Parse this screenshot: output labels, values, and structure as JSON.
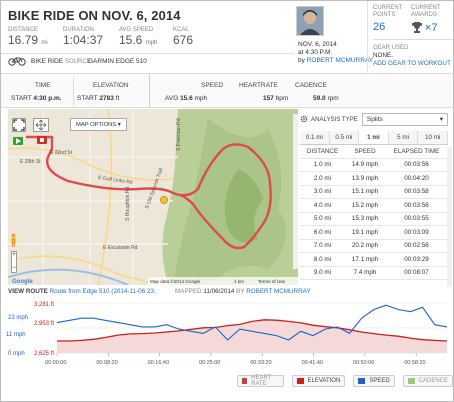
{
  "title": "BIKE RIDE ON NOV. 6, 2014",
  "stats": [
    {
      "label": "DISTANCE",
      "value": "16.79",
      "unit": "mi"
    },
    {
      "label": "DURATION",
      "value": "1:04:37",
      "unit": ""
    },
    {
      "label": "AVG SPEED",
      "value": "15.6",
      "unit": "mph"
    },
    {
      "label": "KCAL",
      "value": "676",
      "unit": ""
    }
  ],
  "activity_type": "BIKE RIDE",
  "source_label": "SOURCE",
  "source_value": "GARMIN EDGE 510",
  "profile": {
    "date": "NOV. 6, 2014",
    "time": "at 4:30 P.M.",
    "by": "by",
    "author": "ROBERT MCMURRAY"
  },
  "points": {
    "label": "CURRENT POINTS",
    "value": "26"
  },
  "awards": {
    "label": "CURRENT AWARDS",
    "value": "7",
    "prefix": "×"
  },
  "gear": {
    "label": "GEAR USED",
    "value": "NONE.",
    "link": "ADD GEAR TO WORKOUT"
  },
  "row2": {
    "time_label": "TIME",
    "start_label": "START",
    "start_time": "4:30 p.m.",
    "elev_label": "ELEVATION",
    "elev_start_label": "START",
    "elev_start": "2783",
    "elev_unit": "ft",
    "speed_label": "SPEED",
    "avg_label": "AVG",
    "avg_speed": "15.6",
    "speed_unit": "mph",
    "hr_label": "HEARTRATE",
    "hr_value": "157",
    "hr_unit": "bpm",
    "cad_label": "CADENCE",
    "cad_value": "59.0",
    "cad_unit": "rpm"
  },
  "map": {
    "options_label": "MAP OPTIONS",
    "roads": [
      "E 22nd St",
      "E 29th St",
      "E Golf Links Rd",
      "E Escalante Rd",
      "S Houghton Rd",
      "S Freeman Rd",
      "S Old Spanish Trail"
    ],
    "attribution": "Map data ©2014 Google",
    "scale": "1 km",
    "terms": "Terms of Use"
  },
  "analysis": {
    "label": "ANALYSIS TYPE",
    "select": "Splits",
    "tabs": [
      "0.1 mi",
      "0.5 mi",
      "1 mi",
      "5 mi",
      "10 mi"
    ],
    "active_tab": 2,
    "columns": [
      "DISTANCE",
      "SPEED",
      "ELAPSED TIME"
    ],
    "rows": [
      [
        "1.0 mi",
        "14.9 mph",
        "00:03:56"
      ],
      [
        "2.0 mi",
        "13.9 mph",
        "00:04:20"
      ],
      [
        "3.0 mi",
        "15.1 mph",
        "00:03:58"
      ],
      [
        "4.0 mi",
        "15.2 mph",
        "00:03:56"
      ],
      [
        "5.0 mi",
        "15.3 mph",
        "00:03:55"
      ],
      [
        "6.0 mi",
        "19.1 mph",
        "00:03:09"
      ],
      [
        "7.0 mi",
        "20.2 mph",
        "00:02:56"
      ],
      [
        "8.0 mi",
        "17.1 mph",
        "00:03:29"
      ],
      [
        "9.0 mi",
        "7.4 mph",
        "00:08:07"
      ]
    ]
  },
  "route": {
    "label": "VIEW ROUTE",
    "name": "Route from Edge 510 (2014-11-06 23:",
    "mapped_label": "MAPPED",
    "mapped_date": "11/06/2014",
    "by": "BY",
    "author": "ROBERT MCMURRAY"
  },
  "chart_data": {
    "type": "line",
    "ylabels_left": [
      {
        "speed": "0 mph",
        "elev": "2,625 ft"
      },
      {
        "speed": "11 mph",
        "elev": "2,953 ft"
      },
      {
        "speed": "23 mph",
        "elev": "3,281 ft"
      }
    ],
    "x_ticks": [
      "00:00:00",
      "00:08:20",
      "00:16:40",
      "00:25:00",
      "00:33:20",
      "00:41:40",
      "00:50:00",
      "00:58:20"
    ],
    "series": [
      {
        "name": "ELEVATION",
        "color": "#cc1f1f",
        "values": [
          2783,
          2782,
          2790,
          2805,
          2830,
          2860,
          2875,
          2880,
          2888,
          2900,
          2915,
          2935,
          2955,
          2960,
          2985,
          3000,
          3040,
          3060,
          3055,
          3040,
          3020,
          2990,
          2970,
          2955,
          2930,
          2900,
          2880,
          2860,
          2845,
          2820,
          2800,
          2790,
          2783
        ]
      },
      {
        "name": "SPEED",
        "color": "#1b66c9",
        "values": [
          14,
          15,
          16,
          16,
          15,
          14,
          13,
          12,
          12,
          13,
          11,
          10,
          9,
          12,
          6,
          11,
          10,
          9,
          8,
          6,
          10,
          8,
          11,
          12,
          9,
          16,
          20,
          22,
          20,
          19,
          21,
          13,
          12
        ]
      }
    ],
    "legend": [
      {
        "name": "HEART RATE",
        "color": "#b44"
      },
      {
        "name": "ELEVATION",
        "color": "#cc1f1f"
      },
      {
        "name": "SPEED",
        "color": "#1b66c9"
      },
      {
        "name": "CADENCE",
        "color": "#9ec77b"
      }
    ]
  }
}
